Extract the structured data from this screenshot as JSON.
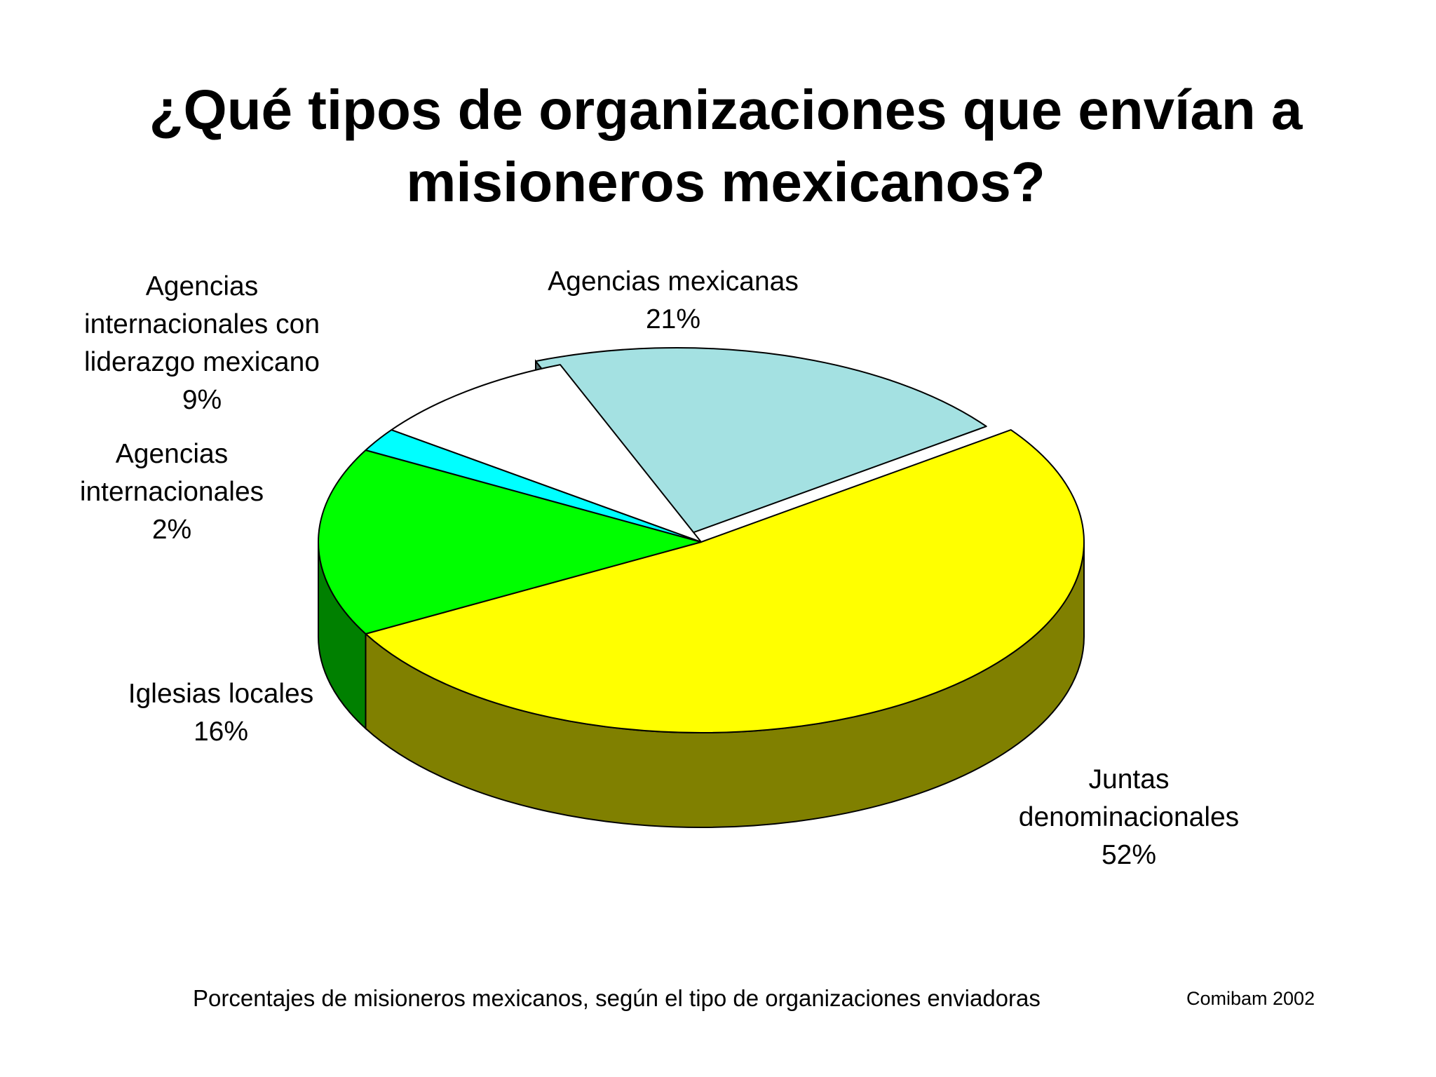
{
  "title": {
    "line1": "¿Qué tipos de organizaciones que envían a",
    "line2": "misioneros mexicanos?"
  },
  "chart_data": {
    "type": "pie",
    "style": "3d",
    "slices": [
      {
        "label": [
          "Juntas",
          "denominacionales"
        ],
        "value": 52,
        "value_label": "52%",
        "color": "#ffff00",
        "side_color": "#808000"
      },
      {
        "label": [
          "Iglesias locales"
        ],
        "value": 16,
        "value_label": "16%",
        "color": "#00ff00",
        "side_color": "#008000"
      },
      {
        "label": [
          "Agencias",
          "internacionales"
        ],
        "value": 2,
        "value_label": "2%",
        "color": "#00ffff",
        "side_color": "#008080"
      },
      {
        "label": [
          "Agencias",
          "internacionales con",
          "liderazgo mexicano"
        ],
        "value": 9,
        "value_label": "9%",
        "color": "#ffffff",
        "side_color": "#c0c0c0"
      },
      {
        "label": [
          "Agencias mexicanas"
        ],
        "value": 21,
        "value_label": "21%",
        "color": "#a4e1e2",
        "side_color": "#527170",
        "exploded": true
      }
    ]
  },
  "caption": "Porcentajes de misioneros mexicanos, según el tipo de organizaciones enviadoras",
  "source": "Comibam 2002"
}
